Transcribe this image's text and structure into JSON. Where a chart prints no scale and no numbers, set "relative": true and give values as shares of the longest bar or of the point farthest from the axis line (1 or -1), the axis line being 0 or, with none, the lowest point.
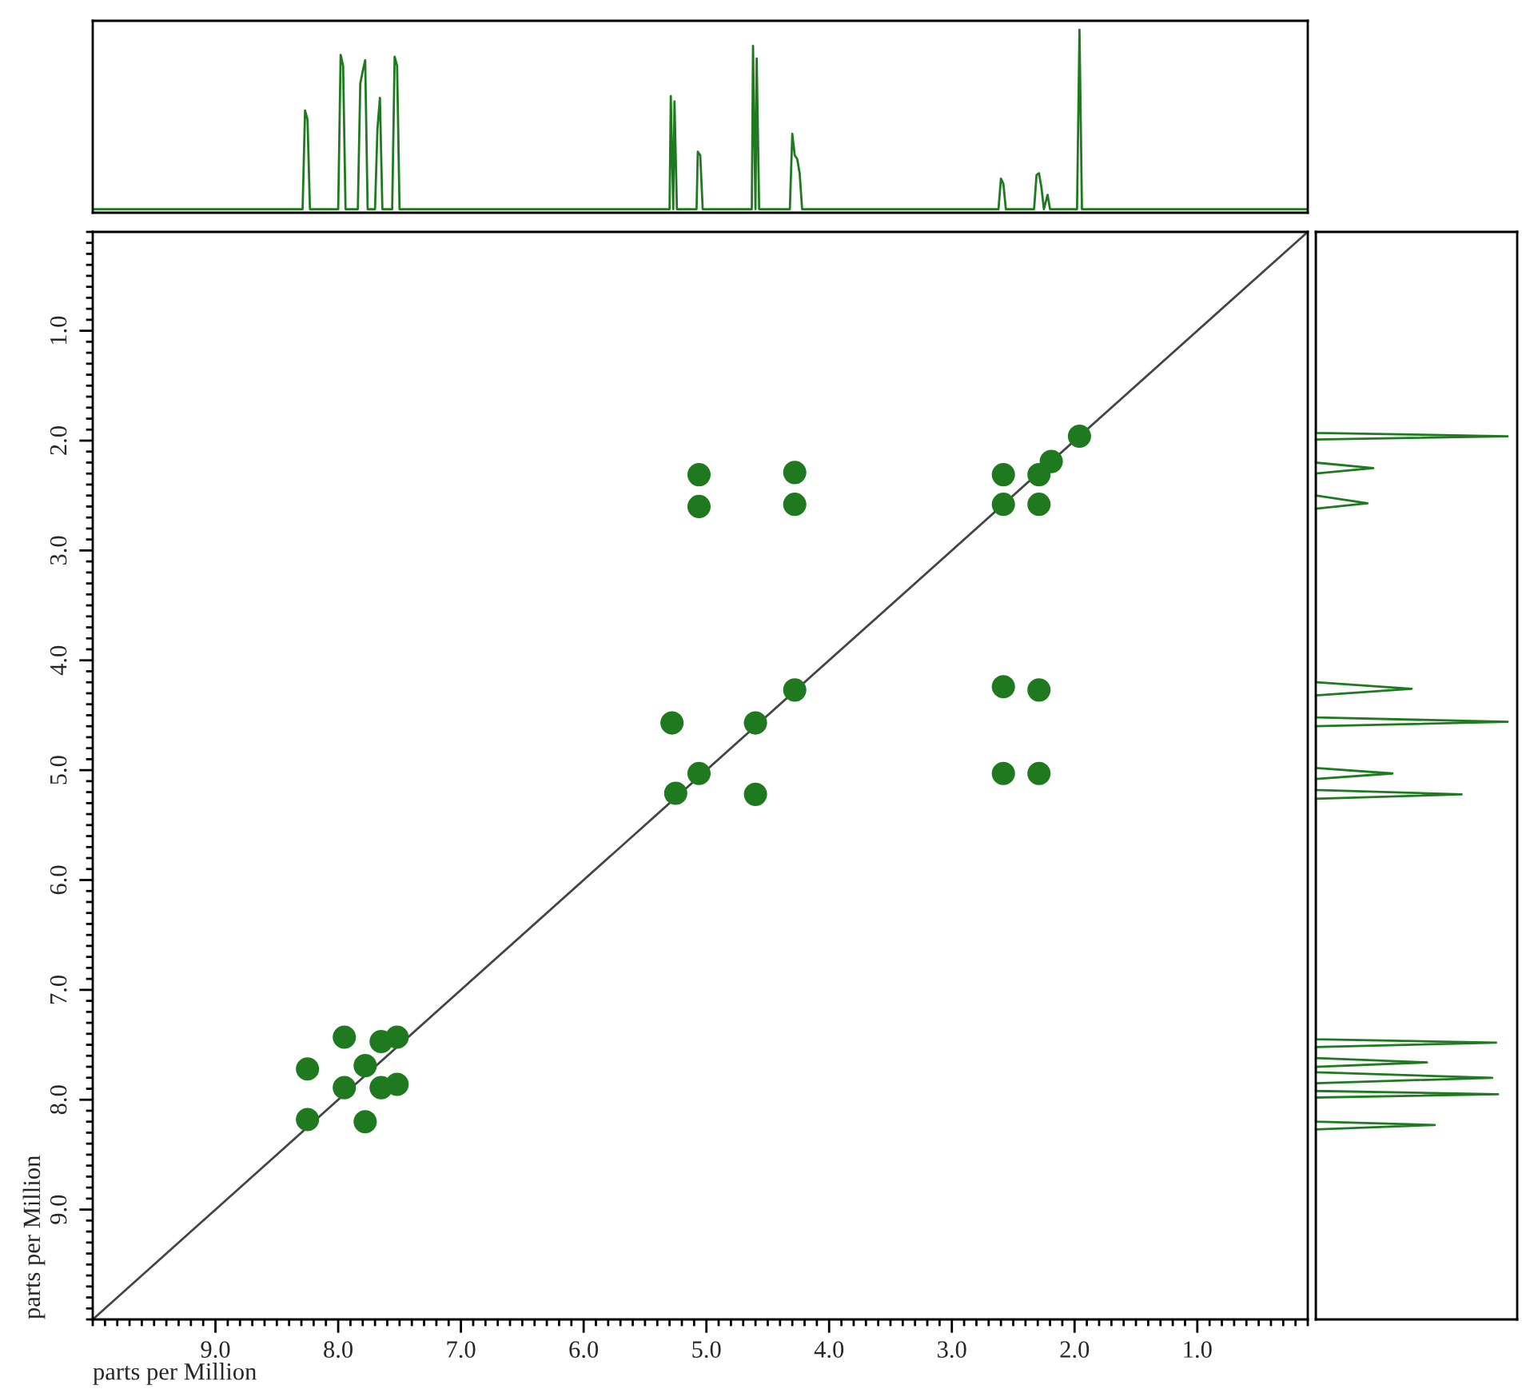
{
  "chart_data": [
    {
      "type": "line",
      "relative": true,
      "tick_labels": false,
      "xlim": [
        10.0,
        0.1
      ],
      "series": [
        {
          "color": "#1f7a1f",
          "x": [
            10.0,
            8.29,
            8.27,
            8.25,
            8.23,
            8.0,
            7.98,
            7.96,
            7.94,
            7.84,
            7.82,
            7.8,
            7.78,
            7.76,
            7.7,
            7.68,
            7.66,
            7.64,
            7.56,
            7.54,
            7.52,
            7.5,
            5.3,
            5.29,
            5.27,
            5.26,
            5.24,
            5.08,
            5.07,
            5.05,
            5.03,
            4.63,
            4.62,
            4.6,
            4.59,
            4.57,
            4.32,
            4.3,
            4.28,
            4.26,
            4.24,
            4.22,
            2.62,
            2.6,
            2.58,
            2.56,
            2.33,
            2.31,
            2.29,
            2.27,
            2.25,
            2.22,
            2.2,
            1.98,
            1.96,
            1.94,
            0.1
          ],
          "values": [
            0,
            0,
            0.55,
            0.5,
            0,
            0,
            0.86,
            0.8,
            0,
            0,
            0.7,
            0.77,
            0.83,
            0,
            0,
            0.45,
            0.62,
            0,
            0,
            0.85,
            0.8,
            0,
            0,
            0.63,
            0,
            0.6,
            0,
            0,
            0.32,
            0.3,
            0,
            0,
            0.91,
            0,
            0.84,
            0,
            0,
            0.42,
            0.3,
            0.28,
            0.2,
            0,
            0,
            0.17,
            0.14,
            0,
            0,
            0.19,
            0.2,
            0.12,
            0,
            0.08,
            0,
            0,
            1.0,
            0,
            0
          ]
        }
      ]
    },
    {
      "type": "scatter",
      "xlabel": "parts per Million",
      "ylabel": "parts per Million",
      "xlim": [
        10.0,
        0.1
      ],
      "ylim": [
        10.0,
        0.1
      ],
      "xticks": [
        {
          "value": 9,
          "label": "9.0"
        },
        {
          "value": 8,
          "label": "8.0"
        },
        {
          "value": 7,
          "label": "7.0"
        },
        {
          "value": 6,
          "label": "6.0"
        },
        {
          "value": 5,
          "label": "5.0"
        },
        {
          "value": 4,
          "label": "4.0"
        },
        {
          "value": 3,
          "label": "3.0"
        },
        {
          "value": 2,
          "label": "2.0"
        },
        {
          "value": 1,
          "label": "1.0"
        }
      ],
      "yticks": [
        {
          "value": 1,
          "label": "1.0"
        },
        {
          "value": 2,
          "label": "2.0"
        },
        {
          "value": 3,
          "label": "3.0"
        },
        {
          "value": 4,
          "label": "4.0"
        },
        {
          "value": 5,
          "label": "5.0"
        },
        {
          "value": 6,
          "label": "6.0"
        },
        {
          "value": 7,
          "label": "7.0"
        },
        {
          "value": 8,
          "label": "8.0"
        },
        {
          "value": 9,
          "label": "9.0"
        }
      ],
      "marker": "circle",
      "series": [
        {
          "type": "scatter",
          "color": "#1f7a1f",
          "x": [
            8.25,
            8.25,
            7.95,
            7.95,
            7.78,
            7.78,
            7.65,
            7.65,
            7.52,
            7.52,
            5.06,
            5.06,
            4.28,
            4.28,
            2.58,
            2.58,
            2.29,
            2.29,
            2.19,
            1.96,
            5.28,
            5.25,
            5.06,
            4.6,
            4.6,
            4.28,
            2.58,
            2.29,
            2.58,
            2.29
          ],
          "values": [
            7.72,
            8.18,
            7.43,
            7.89,
            7.69,
            8.2,
            7.47,
            7.89,
            7.43,
            7.86,
            2.31,
            2.6,
            2.29,
            2.58,
            2.31,
            2.58,
            2.31,
            2.58,
            2.19,
            1.96,
            4.57,
            5.21,
            5.03,
            4.57,
            5.22,
            4.27,
            4.24,
            4.27,
            5.03,
            5.03
          ]
        },
        {
          "type": "line",
          "color": "#444444",
          "marker": "none",
          "x": [
            10.0,
            0.1
          ],
          "values": [
            10.0,
            0.1
          ]
        }
      ]
    },
    {
      "type": "line",
      "orientation": "horizontal",
      "relative": true,
      "tick_labels": false,
      "ylim": [
        10.0,
        0.1
      ],
      "series": [
        {
          "color": "#1f7a1f",
          "x": [
            0.1,
            1.93,
            1.96,
            1.99,
            2.2,
            2.25,
            2.3,
            2.5,
            2.57,
            2.62,
            4.2,
            4.26,
            4.32,
            4.52,
            4.56,
            4.6,
            4.98,
            5.03,
            5.08,
            5.18,
            5.22,
            5.26,
            7.45,
            7.48,
            7.52,
            7.62,
            7.66,
            7.7,
            7.75,
            7.8,
            7.85,
            7.92,
            7.95,
            7.98,
            8.2,
            8.23,
            8.27,
            10.0
          ],
          "values": [
            0,
            0,
            1.0,
            0,
            0,
            0.3,
            0,
            0,
            0.27,
            0,
            0,
            0.5,
            0,
            0,
            1.0,
            0,
            0,
            0.4,
            0,
            0,
            0.76,
            0,
            0,
            0.94,
            0,
            0,
            0.58,
            0,
            0,
            0.92,
            0,
            0,
            0.95,
            0,
            0,
            0.62,
            0,
            0
          ]
        }
      ]
    }
  ]
}
